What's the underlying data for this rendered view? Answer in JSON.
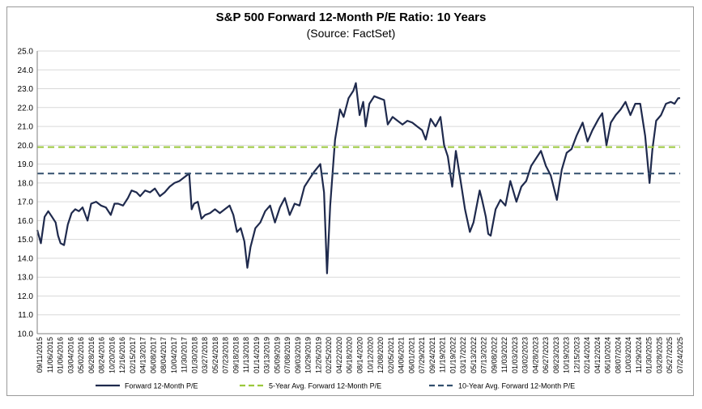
{
  "chart_data": {
    "type": "line",
    "title": "S&P 500 Forward 12-Month P/E Ratio: 10 Years",
    "subtitle": "(Source: FactSet)",
    "ylim": [
      10.0,
      25.0
    ],
    "xlim": [
      "2015-09-11",
      "2025-09-30"
    ],
    "grid": true,
    "legend_position": "bottom",
    "y_ticks": [
      "10.0",
      "11.0",
      "12.0",
      "13.0",
      "14.0",
      "15.0",
      "16.0",
      "17.0",
      "18.0",
      "19.0",
      "20.0",
      "21.0",
      "22.0",
      "23.0",
      "24.0",
      "25.0"
    ],
    "x_ticks": [
      "09/11/2015",
      "11/06/2015",
      "01/06/2016",
      "03/04/2016",
      "05/02/2016",
      "06/28/2016",
      "08/24/2016",
      "10/20/2016",
      "12/16/2016",
      "02/15/2017",
      "04/13/2017",
      "06/08/2017",
      "08/04/2017",
      "10/04/2017",
      "11/30/2017",
      "01/30/2018",
      "03/27/2018",
      "05/24/2018",
      "07/23/2018",
      "09/18/2018",
      "11/13/2018",
      "01/14/2019",
      "03/13/2019",
      "05/09/2019",
      "07/08/2019",
      "09/03/2019",
      "10/29/2019",
      "12/26/2019",
      "02/25/2020",
      "04/22/2020",
      "06/18/2020",
      "08/14/2020",
      "10/12/2020",
      "12/08/2020",
      "02/05/2021",
      "04/06/2021",
      "06/01/2021",
      "07/29/2021",
      "09/24/2021",
      "11/19/2021",
      "01/19/2022",
      "03/17/2022",
      "05/13/2022",
      "07/13/2022",
      "09/08/2022",
      "11/03/2022",
      "01/03/2023",
      "03/02/2023",
      "04/28/2023",
      "06/27/2023",
      "08/23/2023",
      "10/19/2023",
      "12/15/2023",
      "02/14/2024",
      "04/12/2024",
      "06/10/2024",
      "08/07/2024",
      "10/03/2024",
      "11/29/2024",
      "01/30/2025",
      "03/28/2025",
      "05/27/2025",
      "07/24/2025"
    ],
    "series": [
      {
        "name": "Forward 12-Month P/E",
        "color": "#1f2a4d",
        "style": "solid",
        "points": [
          [
            "2015-09-11",
            15.5
          ],
          [
            "2015-10-02",
            14.8
          ],
          [
            "2015-10-23",
            16.2
          ],
          [
            "2015-11-13",
            16.5
          ],
          [
            "2015-12-04",
            16.2
          ],
          [
            "2015-12-25",
            15.9
          ],
          [
            "2016-01-08",
            15.2
          ],
          [
            "2016-01-22",
            14.8
          ],
          [
            "2016-02-11",
            14.7
          ],
          [
            "2016-03-04",
            15.8
          ],
          [
            "2016-03-25",
            16.4
          ],
          [
            "2016-04-15",
            16.6
          ],
          [
            "2016-05-06",
            16.5
          ],
          [
            "2016-05-27",
            16.7
          ],
          [
            "2016-06-24",
            16.0
          ],
          [
            "2016-07-15",
            16.9
          ],
          [
            "2016-08-12",
            17.0
          ],
          [
            "2016-09-09",
            16.8
          ],
          [
            "2016-10-07",
            16.7
          ],
          [
            "2016-11-04",
            16.3
          ],
          [
            "2016-11-25",
            16.9
          ],
          [
            "2016-12-16",
            16.9
          ],
          [
            "2017-01-13",
            16.8
          ],
          [
            "2017-02-10",
            17.2
          ],
          [
            "2017-03-03",
            17.6
          ],
          [
            "2017-03-31",
            17.5
          ],
          [
            "2017-04-21",
            17.3
          ],
          [
            "2017-05-19",
            17.6
          ],
          [
            "2017-06-16",
            17.5
          ],
          [
            "2017-07-14",
            17.7
          ],
          [
            "2017-08-11",
            17.3
          ],
          [
            "2017-09-08",
            17.5
          ],
          [
            "2017-10-06",
            17.8
          ],
          [
            "2017-11-03",
            18.0
          ],
          [
            "2017-12-01",
            18.1
          ],
          [
            "2017-12-29",
            18.3
          ],
          [
            "2018-01-26",
            18.5
          ],
          [
            "2018-02-09",
            16.6
          ],
          [
            "2018-02-23",
            16.9
          ],
          [
            "2018-03-16",
            17.0
          ],
          [
            "2018-04-06",
            16.1
          ],
          [
            "2018-04-27",
            16.3
          ],
          [
            "2018-05-25",
            16.4
          ],
          [
            "2018-06-22",
            16.6
          ],
          [
            "2018-07-20",
            16.4
          ],
          [
            "2018-08-17",
            16.6
          ],
          [
            "2018-09-14",
            16.8
          ],
          [
            "2018-10-05",
            16.3
          ],
          [
            "2018-10-26",
            15.4
          ],
          [
            "2018-11-16",
            15.6
          ],
          [
            "2018-12-07",
            14.9
          ],
          [
            "2018-12-24",
            13.5
          ],
          [
            "2019-01-11",
            14.6
          ],
          [
            "2019-02-08",
            15.6
          ],
          [
            "2019-03-08",
            15.9
          ],
          [
            "2019-04-05",
            16.5
          ],
          [
            "2019-05-03",
            16.8
          ],
          [
            "2019-05-31",
            15.9
          ],
          [
            "2019-06-28",
            16.7
          ],
          [
            "2019-07-26",
            17.2
          ],
          [
            "2019-08-23",
            16.3
          ],
          [
            "2019-09-20",
            16.9
          ],
          [
            "2019-10-18",
            16.8
          ],
          [
            "2019-11-15",
            17.8
          ],
          [
            "2019-12-13",
            18.2
          ],
          [
            "2020-01-10",
            18.6
          ],
          [
            "2020-02-14",
            19.0
          ],
          [
            "2020-03-06",
            17.5
          ],
          [
            "2020-03-23",
            13.2
          ],
          [
            "2020-04-10",
            16.8
          ],
          [
            "2020-05-08",
            20.3
          ],
          [
            "2020-06-05",
            21.9
          ],
          [
            "2020-06-26",
            21.5
          ],
          [
            "2020-07-24",
            22.5
          ],
          [
            "2020-08-21",
            22.9
          ],
          [
            "2020-09-04",
            23.3
          ],
          [
            "2020-09-25",
            21.6
          ],
          [
            "2020-10-16",
            22.3
          ],
          [
            "2020-10-30",
            21.0
          ],
          [
            "2020-11-20",
            22.2
          ],
          [
            "2020-12-18",
            22.6
          ],
          [
            "2021-01-15",
            22.5
          ],
          [
            "2021-02-12",
            22.4
          ],
          [
            "2021-03-05",
            21.1
          ],
          [
            "2021-04-02",
            21.5
          ],
          [
            "2021-04-30",
            21.3
          ],
          [
            "2021-05-28",
            21.1
          ],
          [
            "2021-06-25",
            21.3
          ],
          [
            "2021-07-23",
            21.2
          ],
          [
            "2021-08-20",
            21.0
          ],
          [
            "2021-09-17",
            20.8
          ],
          [
            "2021-10-08",
            20.3
          ],
          [
            "2021-11-05",
            21.4
          ],
          [
            "2021-12-03",
            21.0
          ],
          [
            "2021-12-31",
            21.5
          ],
          [
            "2022-01-21",
            20.0
          ],
          [
            "2022-02-11",
            19.4
          ],
          [
            "2022-03-08",
            17.8
          ],
          [
            "2022-03-29",
            19.7
          ],
          [
            "2022-04-22",
            18.3
          ],
          [
            "2022-05-20",
            16.6
          ],
          [
            "2022-06-17",
            15.4
          ],
          [
            "2022-07-08",
            15.9
          ],
          [
            "2022-08-12",
            17.6
          ],
          [
            "2022-08-26",
            17.1
          ],
          [
            "2022-09-16",
            16.2
          ],
          [
            "2022-09-30",
            15.3
          ],
          [
            "2022-10-14",
            15.2
          ],
          [
            "2022-11-11",
            16.6
          ],
          [
            "2022-12-09",
            17.1
          ],
          [
            "2023-01-06",
            16.8
          ],
          [
            "2023-02-03",
            18.1
          ],
          [
            "2023-03-10",
            17.0
          ],
          [
            "2023-04-07",
            17.8
          ],
          [
            "2023-05-05",
            18.1
          ],
          [
            "2023-06-02",
            18.9
          ],
          [
            "2023-07-28",
            19.7
          ],
          [
            "2023-08-25",
            18.9
          ],
          [
            "2023-09-22",
            18.4
          ],
          [
            "2023-10-27",
            17.1
          ],
          [
            "2023-11-24",
            18.7
          ],
          [
            "2023-12-22",
            19.6
          ],
          [
            "2024-01-19",
            19.8
          ],
          [
            "2024-02-16",
            20.5
          ],
          [
            "2024-03-22",
            21.2
          ],
          [
            "2024-04-19",
            20.2
          ],
          [
            "2024-05-17",
            20.8
          ],
          [
            "2024-06-21",
            21.4
          ],
          [
            "2024-07-12",
            21.7
          ],
          [
            "2024-08-05",
            20.0
          ],
          [
            "2024-08-30",
            21.2
          ],
          [
            "2024-09-27",
            21.6
          ],
          [
            "2024-10-25",
            21.9
          ],
          [
            "2024-11-22",
            22.3
          ],
          [
            "2024-12-20",
            21.6
          ],
          [
            "2025-01-17",
            22.2
          ],
          [
            "2025-02-14",
            22.2
          ],
          [
            "2025-03-14",
            20.5
          ],
          [
            "2025-04-08",
            18.0
          ],
          [
            "2025-04-25",
            19.8
          ],
          [
            "2025-05-16",
            21.3
          ],
          [
            "2025-06-13",
            21.6
          ],
          [
            "2025-07-11",
            22.2
          ],
          [
            "2025-08-08",
            22.3
          ],
          [
            "2025-08-29",
            22.2
          ],
          [
            "2025-09-19",
            22.5
          ],
          [
            "2025-09-30",
            22.5
          ]
        ]
      },
      {
        "name": "5-Year Avg. Forward 12-Month P/E",
        "color": "#9bc83c",
        "style": "dashed",
        "value": 19.9
      },
      {
        "name": "10-Year Avg. Forward 12-Month P/E",
        "color": "#34506e",
        "style": "dashed",
        "value": 18.5
      }
    ]
  }
}
